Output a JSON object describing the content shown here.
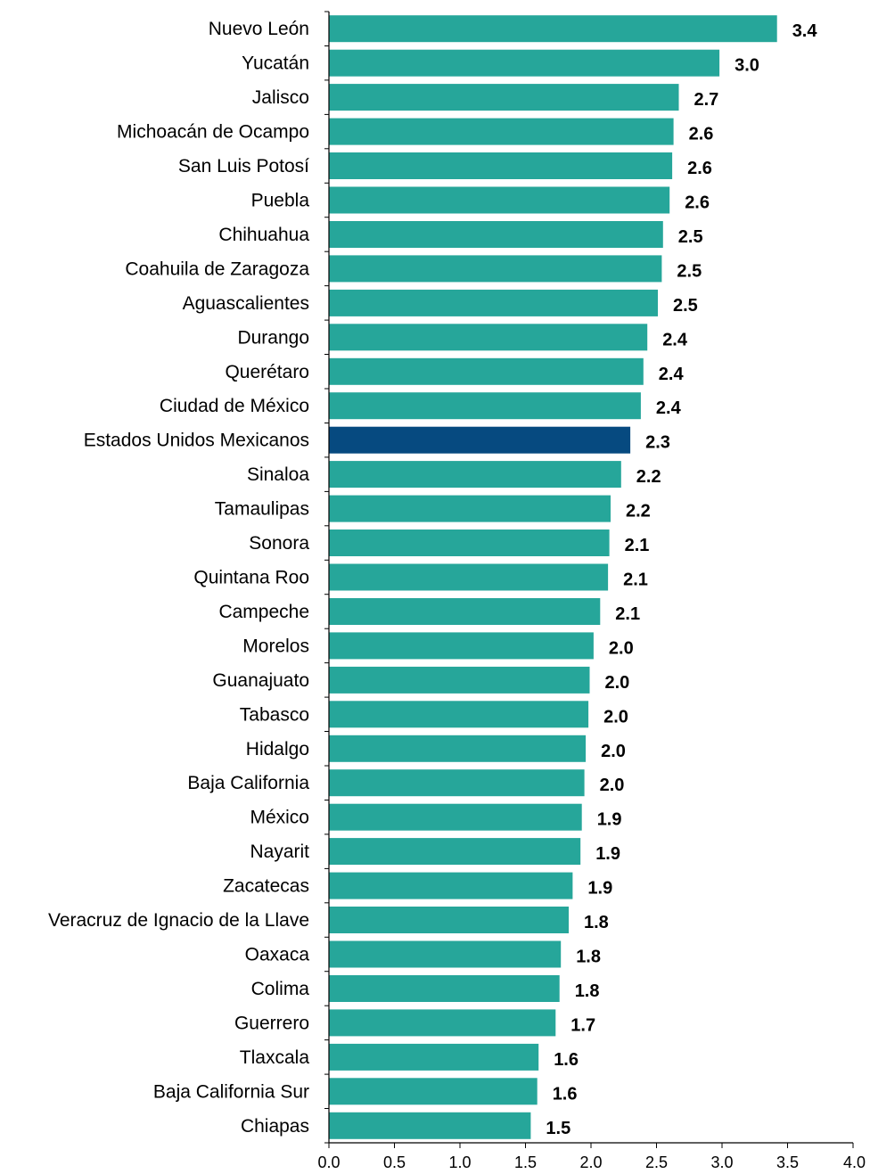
{
  "chart_data": {
    "type": "bar",
    "orientation": "horizontal",
    "title": "",
    "xlabel": "",
    "ylabel": "",
    "xlim": [
      0,
      4.0
    ],
    "x_ticks": [
      "0.0",
      "0.5",
      "1.0",
      "1.5",
      "2.0",
      "2.5",
      "3.0",
      "3.5",
      "4.0"
    ],
    "grid": false,
    "legend": "none",
    "colors": {
      "bar": "#26a69a",
      "highlight": "#064a80"
    },
    "highlight_category": "Estados Unidos Mexicanos",
    "categories": [
      "Nuevo León",
      "Yucatán",
      "Jalisco",
      "Michoacán de Ocampo",
      "San Luis Potosí",
      "Puebla",
      "Chihuahua",
      "Coahuila de Zaragoza",
      "Aguascalientes",
      "Durango",
      "Querétaro",
      "Ciudad de México",
      "Estados Unidos Mexicanos",
      "Sinaloa",
      "Tamaulipas",
      "Sonora",
      "Quintana Roo",
      "Campeche",
      "Morelos",
      "Guanajuato",
      "Tabasco",
      "Hidalgo",
      "Baja California",
      "México",
      "Nayarit",
      "Zacatecas",
      "Veracruz de Ignacio de la Llave",
      "Oaxaca",
      "Colima",
      "Guerrero",
      "Tlaxcala",
      "Baja California Sur",
      "Chiapas"
    ],
    "values": [
      3.42,
      2.98,
      2.67,
      2.63,
      2.62,
      2.6,
      2.55,
      2.54,
      2.51,
      2.43,
      2.4,
      2.38,
      2.3,
      2.23,
      2.15,
      2.14,
      2.13,
      2.07,
      2.02,
      1.99,
      1.98,
      1.96,
      1.95,
      1.93,
      1.92,
      1.86,
      1.83,
      1.77,
      1.76,
      1.73,
      1.6,
      1.59,
      1.54
    ],
    "value_labels": [
      "3.4",
      "3.0",
      "2.7",
      "2.6",
      "2.6",
      "2.6",
      "2.5",
      "2.5",
      "2.5",
      "2.4",
      "2.4",
      "2.4",
      "2.3",
      "2.2",
      "2.2",
      "2.1",
      "2.1",
      "2.1",
      "2.0",
      "2.0",
      "2.0",
      "2.0",
      "2.0",
      "1.9",
      "1.9",
      "1.9",
      "1.8",
      "1.8",
      "1.8",
      "1.7",
      "1.6",
      "1.6",
      "1.5"
    ]
  }
}
